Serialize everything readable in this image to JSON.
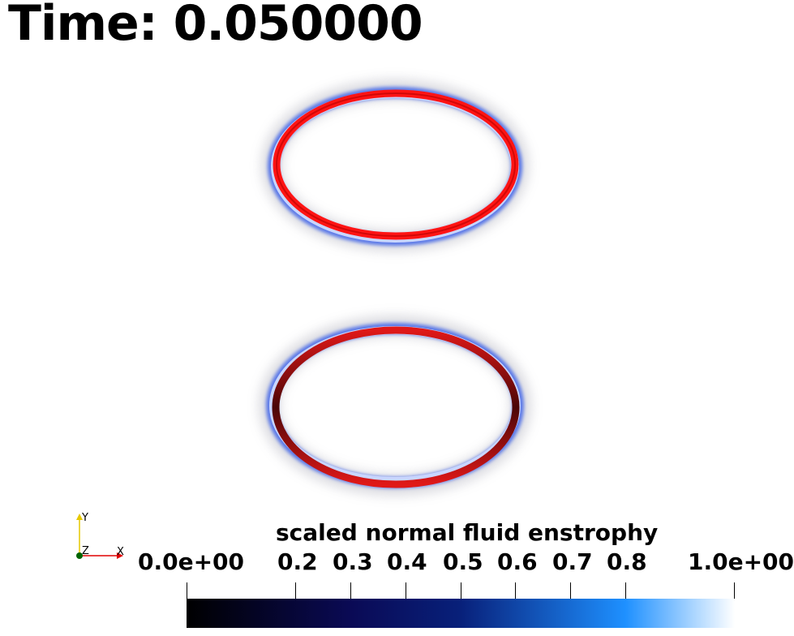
{
  "time_label": "Time: 0.050000",
  "colorbar": {
    "title": "scaled normal fluid enstrophy",
    "labels": {
      "min": "0.0e+00",
      "t02": "0.2",
      "t03": "0.3",
      "t04": "0.4",
      "t05": "0.5",
      "t06": "0.6",
      "t07": "0.7",
      "t08": "0.8",
      "max": "1.0e+00"
    },
    "colors": [
      "#000000",
      "#0a0a55",
      "#08207a",
      "#1e90ff",
      "#ffffff"
    ]
  },
  "axes": {
    "y": "Y",
    "z": "Z",
    "x": "X",
    "colors": {
      "y": "#e6c800",
      "x": "#e00000",
      "z": "#006400"
    }
  },
  "rings": {
    "outer_glow": "#4a6ee0",
    "top_core": "#ff1a1a",
    "bottom_core": "#d81515",
    "bottom_shade": "#5a0808"
  }
}
